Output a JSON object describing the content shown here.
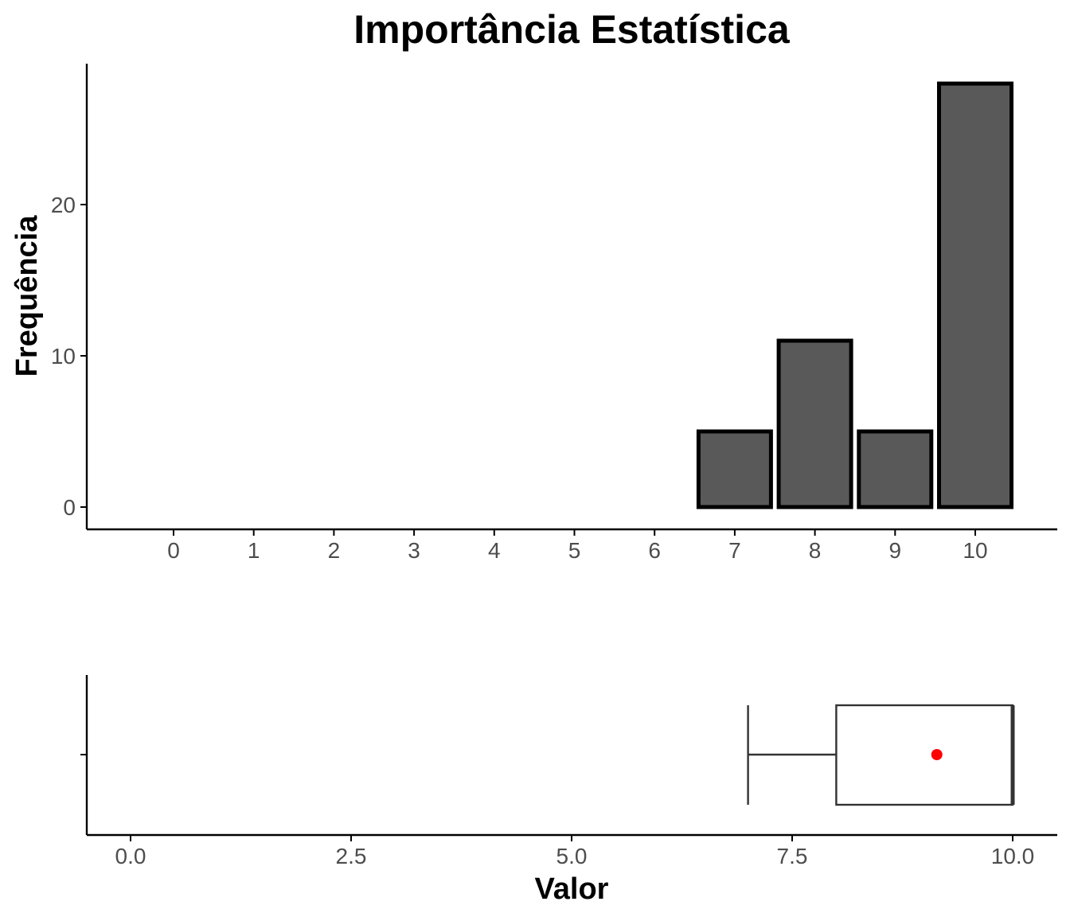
{
  "chart_data": [
    {
      "type": "bar",
      "title": "Importância Estatística",
      "xlabel": "",
      "ylabel": "Frequência",
      "categories": [
        "0",
        "1",
        "2",
        "3",
        "4",
        "5",
        "6",
        "7",
        "8",
        "9",
        "10"
      ],
      "values": [
        0,
        0,
        0,
        0,
        0,
        0,
        0,
        5,
        11,
        5,
        28
      ],
      "ylim": [
        0,
        29.4
      ],
      "yticks": [
        "0",
        "10",
        "20"
      ],
      "ytick_values": [
        0,
        10,
        20
      ],
      "grid": false,
      "colors": {
        "bar_fill": "#595959",
        "bar_stroke": "#000000"
      }
    },
    {
      "type": "boxplot",
      "xlabel": "Valor",
      "ylabel": "",
      "xlim": [
        -0.5,
        10.5
      ],
      "xticks": [
        "0.0",
        "2.5",
        "5.0",
        "7.5",
        "10.0"
      ],
      "xtick_values": [
        0,
        2.5,
        5,
        7.5,
        10
      ],
      "whisker_low": 7,
      "q1": 8,
      "median": 10,
      "q3": 10,
      "whisker_high": 10,
      "mean": 9.14,
      "grid": false,
      "colors": {
        "box_stroke": "#333333",
        "mean_point": "#ff0000"
      }
    }
  ]
}
